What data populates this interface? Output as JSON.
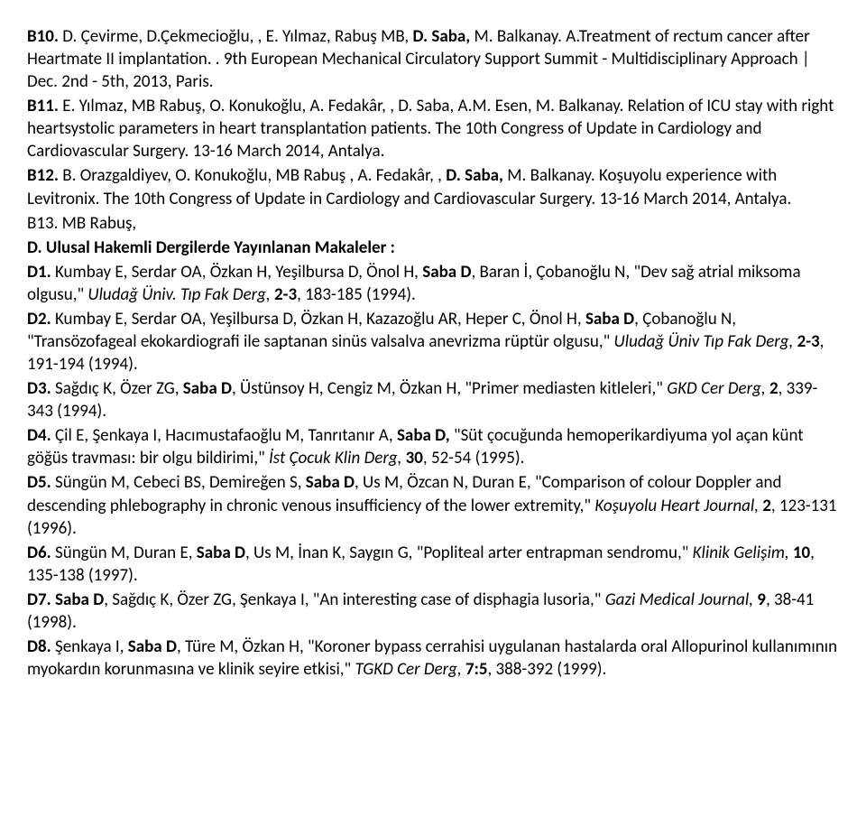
{
  "entries": [
    {
      "type": "runs",
      "segments": [
        {
          "t": "B10.",
          "b": true
        },
        {
          "t": " D. Çevirme, D.Çekmecioğlu, , E. Yılmaz, Rabuş MB, "
        },
        {
          "t": "D. Saba,",
          "b": true
        },
        {
          "t": " M. Balkanay. A.Treatment of rectum cancer after Heartmate II implantation. . 9th European Mechanical Circulatory Support Summit - Multidisciplinary Approach | Dec. 2nd - 5th, 2013, Paris."
        }
      ]
    },
    {
      "type": "runs",
      "segments": [
        {
          "t": "B11.",
          "b": true
        },
        {
          "t": " E. Yılmaz, MB Rabuş, O. Konukoğlu, A. Fedakâr, , D. Saba, A.M. Esen, M. Balkanay. Relation of ICU stay with right heartsystolic parameters in heart transplantation patients. The 10th Congress of Update in Cardiology and Cardiovascular Surgery. 13-16 March 2014, Antalya."
        }
      ]
    },
    {
      "type": "runs",
      "segments": [
        {
          "t": "B12.",
          "b": true
        },
        {
          "t": " B. Orazgaldiyev, O. Konukoğlu, MB Rabuş , A. Fedakâr, , "
        },
        {
          "t": "D. Saba,",
          "b": true
        },
        {
          "t": " M. Balkanay. Koşuyolu experience with Levitronix. The 10th Congress of Update in Cardiology and Cardiovascular Surgery. 13-16 March 2014, Antalya."
        }
      ]
    },
    {
      "type": "runs",
      "segments": [
        {
          "t": "B13. MB Rabuş,"
        }
      ]
    },
    {
      "type": "runs",
      "segments": [
        {
          "t": "D. Ulusal Hakemli Dergilerde Yayınlanan Makaleler :",
          "b": true
        }
      ]
    },
    {
      "type": "runs",
      "segments": [
        {
          "t": "D1.",
          "b": true
        },
        {
          "t": " Kumbay E, Serdar OA, Özkan H, Yeşilbursa D, Önol H, "
        },
        {
          "t": "Saba D",
          "b": true
        },
        {
          "t": ", Baran İ, Çobanoğlu N, \"Dev sağ atrial miksoma olgusu,\" "
        },
        {
          "t": "Uludağ Üniv. Tıp Fak Derg,",
          "i": true
        },
        {
          "t": " "
        },
        {
          "t": "2-3",
          "b": true
        },
        {
          "t": ", 183-185 (1994)."
        }
      ]
    },
    {
      "type": "runs",
      "segments": [
        {
          "t": "D2.",
          "b": true
        },
        {
          "t": " Kumbay E, Serdar OA, Yeşilbursa D, Özkan H, Kazazoğlu AR, Heper C, Önol H, "
        },
        {
          "t": "Saba D",
          "b": true
        },
        {
          "t": ", Çobanoğlu N, \"Transözofageal ekokardiografi ile saptanan sinüs valsalva anevrizma rüptür olgusu,\" "
        },
        {
          "t": "Uludağ Üniv Tıp Fak Derg,",
          "i": true
        },
        {
          "t": " "
        },
        {
          "t": "2-3",
          "b": true
        },
        {
          "t": ", 191-194 (1994)."
        }
      ]
    },
    {
      "type": "runs",
      "segments": [
        {
          "t": "D3.",
          "b": true
        },
        {
          "t": " Sağdıç K, Özer ZG, "
        },
        {
          "t": "Saba D",
          "b": true
        },
        {
          "t": ", Üstünsoy H, Cengiz M, Özkan H, \"Primer mediasten kitleleri,\" "
        },
        {
          "t": "GKD Cer Derg,",
          "i": true
        },
        {
          "t": " "
        },
        {
          "t": "2",
          "b": true
        },
        {
          "t": ", 339-343 (1994)."
        }
      ]
    },
    {
      "type": "runs",
      "segments": [
        {
          "t": "D4.",
          "b": true
        },
        {
          "t": " Çil E, Şenkaya I, Hacımustafaoğlu M, Tanrıtanır A, "
        },
        {
          "t": "Saba D,",
          "b": true
        },
        {
          "t": " \"Süt çocuğunda hemoperikardiyuma yol açan künt göğüs travması: bir olgu bildirimi,\" "
        },
        {
          "t": "İst Çocuk Klin Derg,",
          "i": true
        },
        {
          "t": " "
        },
        {
          "t": "30",
          "b": true
        },
        {
          "t": ", 52-54 (1995)."
        }
      ]
    },
    {
      "type": "runs",
      "segments": [
        {
          "t": "D5.",
          "b": true
        },
        {
          "t": " Süngün M, Cebeci BS, Demireğen S, "
        },
        {
          "t": "Saba D",
          "b": true
        },
        {
          "t": ", Us M, Özcan N, Duran E, \"Comparison of colour Doppler and descending phlebography in chronic venous insufficiency of the lower extremity,\" "
        },
        {
          "t": "Koşuyolu Heart Journal,",
          "i": true
        },
        {
          "t": " "
        },
        {
          "t": "2",
          "b": true
        },
        {
          "t": ", 123-131 (1996)."
        }
      ]
    },
    {
      "type": "runs",
      "segments": [
        {
          "t": "D6.",
          "b": true
        },
        {
          "t": " Süngün M, Duran E, "
        },
        {
          "t": "Saba D",
          "b": true
        },
        {
          "t": ", Us M, İnan K, Saygın G, \"Popliteal arter entrapman sendromu,\" "
        },
        {
          "t": "Klinik Gelişim,",
          "i": true
        },
        {
          "t": " "
        },
        {
          "t": "10",
          "b": true
        },
        {
          "t": ", 135-138 (1997)."
        }
      ]
    },
    {
      "type": "runs",
      "segments": [
        {
          "t": "D7.",
          "b": true
        },
        {
          "t": " "
        },
        {
          "t": "Saba D",
          "b": true
        },
        {
          "t": ", Sağdıç K, Özer ZG, Şenkaya I, \"An interesting case of disphagia lusoria,\" "
        },
        {
          "t": "Gazi Medical Journal,",
          "i": true
        },
        {
          "t": " "
        },
        {
          "t": "9",
          "b": true
        },
        {
          "t": ", 38-41 (1998)."
        }
      ]
    },
    {
      "type": "runs",
      "segments": [
        {
          "t": "D8.",
          "b": true
        },
        {
          "t": " Şenkaya I, "
        },
        {
          "t": "Saba D",
          "b": true
        },
        {
          "t": ", Türe M, Özkan H, \"Koroner bypass cerrahisi uygulanan hastalarda oral Allopurinol kullanımının myokardın korunmasına ve klinik seyire etkisi,\" "
        },
        {
          "t": "TGKD Cer Derg,",
          "i": true
        },
        {
          "t": " "
        },
        {
          "t": "7:5",
          "b": true
        },
        {
          "t": ", 388-392 (1999)."
        }
      ]
    }
  ]
}
